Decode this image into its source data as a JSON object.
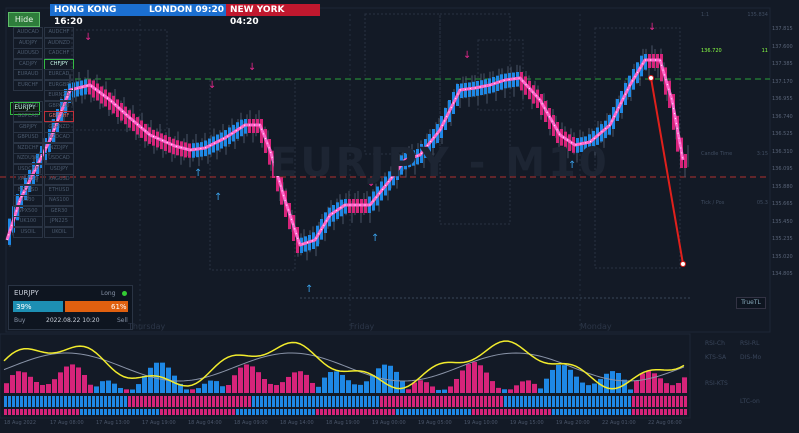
{
  "toolbar": {
    "hide_label": "Hide"
  },
  "sessions": [
    {
      "label": "HONG KONG 16:20",
      "color": "#1b6fd1"
    },
    {
      "label": "LONDON  09:20",
      "color": "#1b6fd1"
    },
    {
      "label": "NEW YORK  04:20",
      "color": "#c0182e"
    }
  ],
  "watermark": {
    "symbol": "EURJPY - M10"
  },
  "pairs": {
    "highlighted": "EURJPY",
    "list": [
      "AUDCAD",
      "AUDCHF",
      "AUDJPY",
      "AUDNZD",
      "AUDUSD",
      "CADCHF",
      "CADJPY",
      "CHFJPY",
      "EURAUD",
      "EURCAD",
      "EURCHF",
      "EURGBP",
      "EURJPY",
      "EURNZD",
      "EURUSD",
      "GBPAUD",
      "GBPCAD",
      "GBPCHF",
      "GBPJPY",
      "GBPNZD",
      "GBPUSD",
      "NZDCAD",
      "NZDCHF",
      "NZDJPY",
      "NZDUSD",
      "USDCAD",
      "USDCHF",
      "USDJPY",
      "XAUUSD",
      "XAGUSD",
      "BTCUSD",
      "ETHUSD",
      "US30",
      "NAS100",
      "SPX500",
      "GER30",
      "UK100",
      "JPN225",
      "USOIL",
      "UKOIL"
    ]
  },
  "right_panel": {
    "header_value": "135.834",
    "tf_label": "1:1",
    "price_label": "136.720",
    "price_value": "11",
    "footer_label": "Candle Time",
    "footer_value": "3:15",
    "tick_label": "Tick / Pos",
    "tick_value": "05.3"
  },
  "sentiment": {
    "symbol": "EURJPY",
    "direction": "Long",
    "buy_pct": "39%",
    "sell_pct": "61%",
    "buy_label": "Buy",
    "sell_label": "Sell",
    "timestamp": "2022.08.22 10:20"
  },
  "true_tl_label": "TrueTL",
  "day_labels": [
    "Thursday",
    "Friday",
    "Monday"
  ],
  "sub_labels": [
    "RSI-Ch",
    "RSI-RL",
    "KTS-SA",
    "DIS-Mo",
    "RSI-KTS",
    "LTC-on"
  ],
  "time_axis": [
    "18 Aug 2022",
    "17 Aug 08:00",
    "17 Aug 13:00",
    "17 Aug 19:00",
    "18 Aug 04:00",
    "18 Aug 09:00",
    "18 Aug 14:00",
    "18 Aug 19:00",
    "19 Aug 00:00",
    "19 Aug 05:00",
    "19 Aug 10:00",
    "19 Aug 15:00",
    "19 Aug 20:00",
    "22 Aug 01:00",
    "22 Aug 06:00"
  ],
  "price_axis": [
    "137.815",
    "137.600",
    "137.385",
    "137.170",
    "136.955",
    "136.740",
    "136.525",
    "136.310",
    "136.095",
    "135.880",
    "135.665",
    "135.450",
    "135.235",
    "135.020",
    "134.805"
  ],
  "colors": {
    "up": "#1e88e5",
    "down": "#d6247a",
    "line": "#ff66cc",
    "yellow": "#f2ec2d"
  }
}
